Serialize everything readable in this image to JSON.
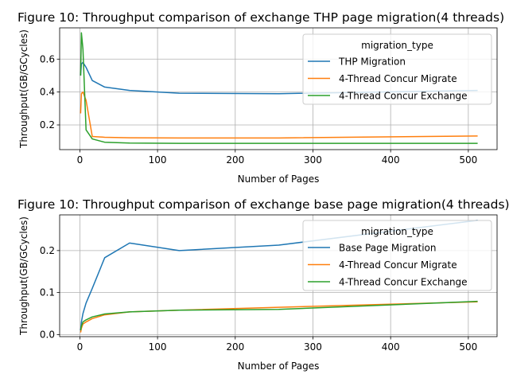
{
  "chart_data": [
    {
      "type": "line",
      "title": "Figure 10: Throughput comparison of exchange THP page migration(4 threads)",
      "xlabel": "Number of Pages",
      "ylabel": "Throughput(GB/GCycles)",
      "xlim": [
        -26,
        537
      ],
      "ylim": [
        0.05,
        0.79
      ],
      "xticks": [
        0,
        100,
        200,
        300,
        400,
        500
      ],
      "yticks": [
        0.2,
        0.4,
        0.6
      ],
      "grid": true,
      "legend": {
        "title": "migration_type",
        "position": "upper right"
      },
      "series": [
        {
          "name": "THP Migration",
          "color": "#1f77b4",
          "x": [
            1,
            2,
            4,
            8,
            16,
            32,
            64,
            128,
            256,
            512
          ],
          "y": [
            0.5,
            0.57,
            0.58,
            0.55,
            0.47,
            0.43,
            0.41,
            0.393,
            0.39,
            0.41
          ]
        },
        {
          "name": "4-Thread Concur Migrate",
          "color": "#ff7f0e",
          "x": [
            1,
            2,
            4,
            8,
            16,
            32,
            64,
            128,
            256,
            512
          ],
          "y": [
            0.27,
            0.39,
            0.4,
            0.35,
            0.13,
            0.125,
            0.122,
            0.121,
            0.121,
            0.133
          ]
        },
        {
          "name": "4-Thread Concur Exchange",
          "color": "#2ca02c",
          "x": [
            1,
            2,
            4,
            8,
            16,
            32,
            64,
            128,
            256,
            512
          ],
          "y": [
            0.5,
            0.76,
            0.66,
            0.17,
            0.115,
            0.095,
            0.09,
            0.088,
            0.088,
            0.088
          ]
        }
      ]
    },
    {
      "type": "line",
      "title": "Figure 10: Throughput comparison of exchange base page migration(4 threads)",
      "xlabel": "Number of Pages",
      "ylabel": "Throughput(GB/GCycles)",
      "xlim": [
        -26,
        537
      ],
      "ylim": [
        -0.005,
        0.285
      ],
      "xticks": [
        0,
        100,
        200,
        300,
        400,
        500
      ],
      "yticks": [
        0.0,
        0.1,
        0.2
      ],
      "grid": true,
      "legend": {
        "title": "migration_type",
        "position": "upper right"
      },
      "series": [
        {
          "name": "Base Page Migration",
          "color": "#1f77b4",
          "x": [
            1,
            2,
            4,
            8,
            16,
            32,
            64,
            128,
            256,
            512
          ],
          "y": [
            0.01,
            0.03,
            0.05,
            0.075,
            0.11,
            0.183,
            0.218,
            0.2,
            0.213,
            0.272
          ]
        },
        {
          "name": "4-Thread Concur Migrate",
          "color": "#ff7f0e",
          "x": [
            1,
            2,
            4,
            8,
            16,
            32,
            64,
            128,
            256,
            512
          ],
          "y": [
            0.005,
            0.015,
            0.025,
            0.03,
            0.038,
            0.047,
            0.054,
            0.058,
            0.065,
            0.078
          ]
        },
        {
          "name": "4-Thread Concur Exchange",
          "color": "#2ca02c",
          "x": [
            1,
            2,
            4,
            8,
            16,
            32,
            64,
            128,
            256,
            512
          ],
          "y": [
            0.01,
            0.02,
            0.03,
            0.035,
            0.042,
            0.049,
            0.054,
            0.058,
            0.06,
            0.079
          ]
        }
      ]
    }
  ]
}
